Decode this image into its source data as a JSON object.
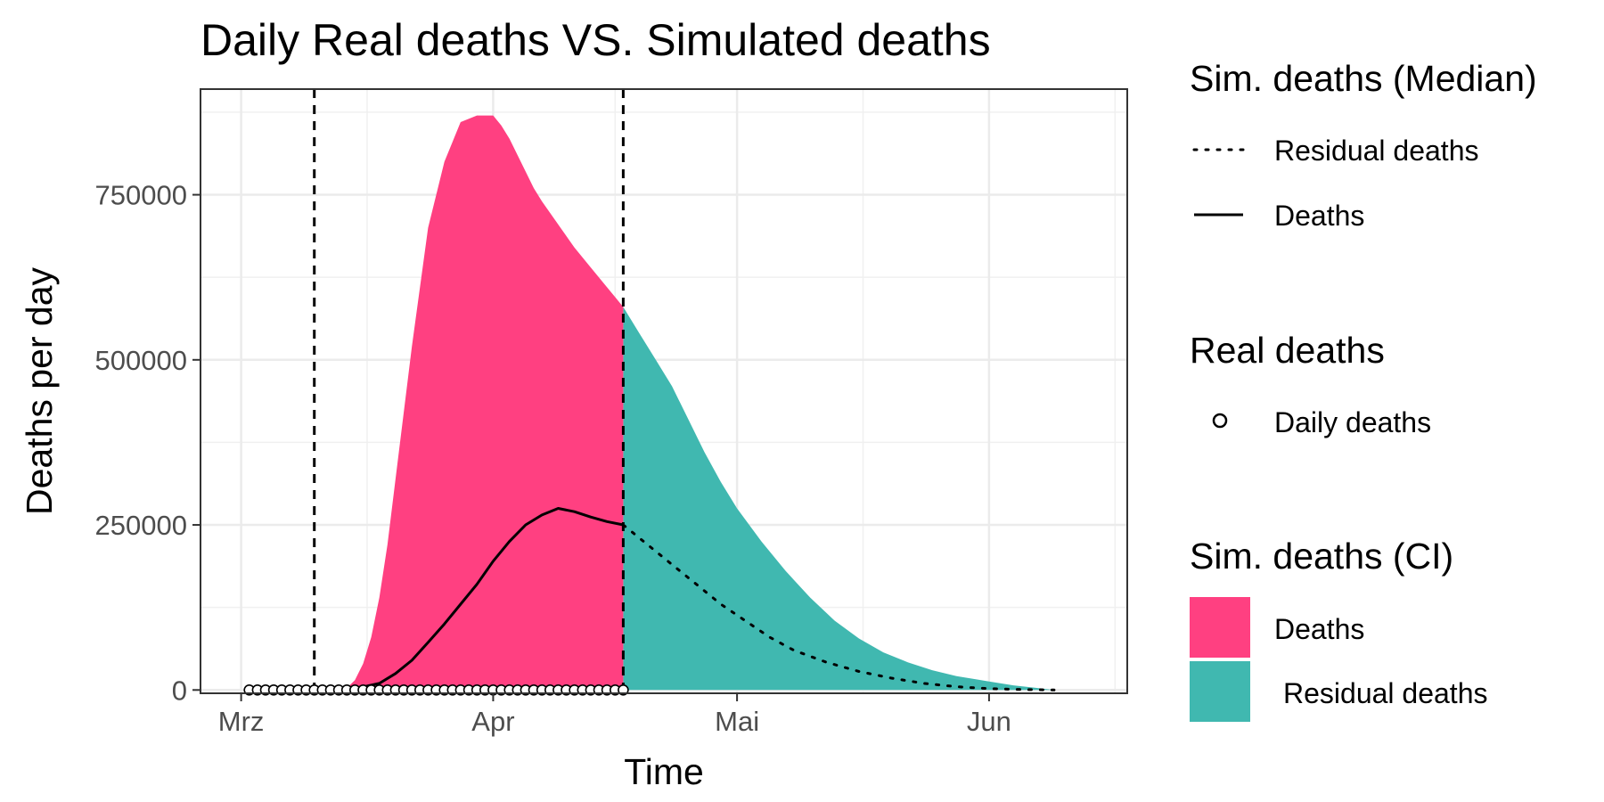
{
  "chart_data": {
    "type": "area",
    "title": "Daily Real deaths VS. Simulated deaths",
    "xlabel": "Time",
    "ylabel": "Deaths per day",
    "x_ticks": [
      {
        "date": "2020-03-01",
        "label": "Mrz"
      },
      {
        "date": "2020-04-01",
        "label": "Apr"
      },
      {
        "date": "2020-05-01",
        "label": "Mai"
      },
      {
        "date": "2020-06-01",
        "label": "Jun"
      }
    ],
    "xlim": [
      "2020-02-25",
      "2020-06-18"
    ],
    "y_ticks": [
      0,
      250000,
      500000,
      750000
    ],
    "ylim": [
      -5000,
      910000
    ],
    "grid": true,
    "legend_position": "right",
    "vlines": [
      "2020-03-10",
      "2020-04-17"
    ],
    "ci_band_deaths": {
      "color": "#FF4081",
      "x": [
        "2020-03-10",
        "2020-03-14",
        "2020-03-15",
        "2020-03-16",
        "2020-03-17",
        "2020-03-18",
        "2020-03-19",
        "2020-03-20",
        "2020-03-22",
        "2020-03-24",
        "2020-03-26",
        "2020-03-28",
        "2020-03-30",
        "2020-04-01",
        "2020-04-02",
        "2020-04-03",
        "2020-04-04",
        "2020-04-05",
        "2020-04-06",
        "2020-04-07",
        "2020-04-09",
        "2020-04-11",
        "2020-04-13",
        "2020-04-15",
        "2020-04-16",
        "2020-04-17"
      ],
      "y": [
        0,
        3000,
        15000,
        40000,
        80000,
        140000,
        220000,
        320000,
        520000,
        700000,
        800000,
        860000,
        870000,
        870000,
        855000,
        835000,
        810000,
        785000,
        760000,
        740000,
        705000,
        670000,
        640000,
        610000,
        595000,
        580000
      ]
    },
    "ci_band_residual": {
      "color": "#40B8B0",
      "x": [
        "2020-04-17",
        "2020-04-19",
        "2020-04-21",
        "2020-04-23",
        "2020-04-25",
        "2020-04-27",
        "2020-04-29",
        "2020-05-01",
        "2020-05-04",
        "2020-05-07",
        "2020-05-10",
        "2020-05-13",
        "2020-05-16",
        "2020-05-19",
        "2020-05-22",
        "2020-05-25",
        "2020-05-28",
        "2020-06-01",
        "2020-06-04",
        "2020-06-07",
        "2020-06-09"
      ],
      "y": [
        580000,
        540000,
        500000,
        460000,
        410000,
        360000,
        315000,
        275000,
        225000,
        180000,
        140000,
        105000,
        78000,
        57000,
        42000,
        30000,
        21000,
        13000,
        7000,
        3000,
        0
      ]
    },
    "series": [
      {
        "name": "Deaths",
        "style": "solid",
        "x": [
          "2020-03-12",
          "2020-03-15",
          "2020-03-18",
          "2020-03-20",
          "2020-03-22",
          "2020-03-24",
          "2020-03-26",
          "2020-03-28",
          "2020-03-30",
          "2020-04-01",
          "2020-04-03",
          "2020-04-05",
          "2020-04-07",
          "2020-04-09",
          "2020-04-11",
          "2020-04-13",
          "2020-04-15",
          "2020-04-17"
        ],
        "y": [
          0,
          2000,
          10000,
          25000,
          45000,
          72000,
          100000,
          130000,
          160000,
          195000,
          225000,
          250000,
          265000,
          275000,
          270000,
          262000,
          255000,
          250000
        ]
      },
      {
        "name": "Residual deaths",
        "style": "dotted",
        "x": [
          "2020-04-17",
          "2020-04-20",
          "2020-04-23",
          "2020-04-26",
          "2020-04-29",
          "2020-05-02",
          "2020-05-05",
          "2020-05-08",
          "2020-05-12",
          "2020-05-16",
          "2020-05-20",
          "2020-05-24",
          "2020-05-28",
          "2020-06-01",
          "2020-06-05",
          "2020-06-09"
        ],
        "y": [
          250000,
          220000,
          190000,
          160000,
          130000,
          105000,
          80000,
          60000,
          42000,
          28000,
          18000,
          10000,
          5000,
          2000,
          800,
          0
        ]
      }
    ],
    "real_deaths": {
      "name": "Daily deaths",
      "start": "2020-03-02",
      "end": "2020-04-17",
      "value": 0
    },
    "legend": {
      "median": {
        "title": "Sim. deaths (Median)",
        "items": [
          {
            "label": "Residual deaths",
            "style": "dotted"
          },
          {
            "label": "Deaths",
            "style": "solid"
          }
        ]
      },
      "real": {
        "title": "Real deaths",
        "items": [
          {
            "label": "Daily deaths"
          }
        ]
      },
      "ci": {
        "title": "Sim. deaths (CI)",
        "items": [
          {
            "label": "Deaths",
            "color": "#FF4081"
          },
          {
            "label": "Residual deaths",
            "color": "#40B8B0"
          }
        ]
      }
    }
  }
}
